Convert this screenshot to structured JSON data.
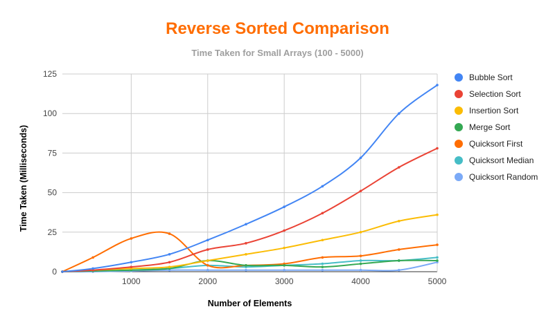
{
  "chart_data": {
    "type": "line",
    "title": "Reverse Sorted Comparison",
    "subtitle": "Time Taken for Small Arrays (100 - 5000)",
    "xlabel": "Number of Elements",
    "ylabel": "Time Taken (Milliseconds)",
    "x": [
      100,
      500,
      1000,
      1500,
      2000,
      2500,
      3000,
      3500,
      4000,
      4500,
      5000
    ],
    "xlim": [
      100,
      5000
    ],
    "ylim": [
      0,
      125
    ],
    "x_ticks": [
      "1000",
      "2000",
      "3000",
      "4000",
      "5000"
    ],
    "x_tick_values": [
      1000,
      2000,
      3000,
      4000,
      5000
    ],
    "y_ticks": [
      "0",
      "25",
      "50",
      "75",
      "100",
      "125"
    ],
    "y_tick_values": [
      0,
      25,
      50,
      75,
      100,
      125
    ],
    "grid": true,
    "legend_position": "right",
    "title_color": "#ff6d01",
    "series": [
      {
        "name": "Bubble Sort",
        "color": "#4285f4",
        "values": [
          0,
          2,
          6,
          11,
          20,
          30,
          41,
          54,
          72,
          100,
          118
        ]
      },
      {
        "name": "Selection Sort",
        "color": "#ea4335",
        "values": [
          0,
          1,
          3,
          6,
          14,
          18,
          26,
          37,
          51,
          66,
          78
        ]
      },
      {
        "name": "Insertion Sort",
        "color": "#fbbc04",
        "values": [
          0,
          1,
          2,
          3,
          7,
          11,
          15,
          20,
          25,
          32,
          36
        ]
      },
      {
        "name": "Merge Sort",
        "color": "#34a853",
        "values": [
          0,
          0.5,
          1,
          2,
          7,
          4,
          4,
          3,
          5,
          7,
          7
        ]
      },
      {
        "name": "Quicksort First",
        "color": "#ff6d01",
        "values": [
          0,
          9,
          21,
          24,
          4,
          4,
          5,
          9,
          10,
          14,
          17
        ]
      },
      {
        "name": "Quicksort Median",
        "color": "#46bdc6",
        "values": [
          0,
          0.5,
          1,
          2,
          4,
          3,
          4,
          5,
          7,
          7,
          9
        ]
      },
      {
        "name": "Quicksort Random",
        "color": "#7baaf7",
        "values": [
          0,
          0,
          0.5,
          1,
          1,
          1,
          1,
          1,
          1,
          1,
          6
        ]
      }
    ]
  }
}
